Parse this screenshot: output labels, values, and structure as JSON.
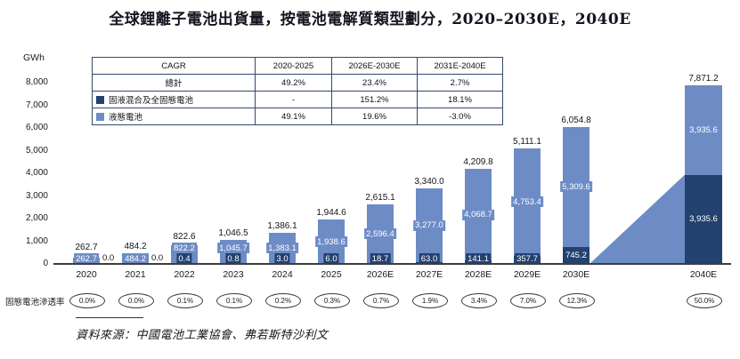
{
  "chart_data": {
    "type": "bar",
    "stacked": true,
    "title": "全球鋰離子電池出貨量，按電池電解質類型劃分，2020–2030E，2040E",
    "ylabel": "GWh",
    "ylim": [
      0,
      8000
    ],
    "ytick_labels": [
      "8,000",
      "7,000",
      "6,000",
      "5,000",
      "4,000",
      "3,000",
      "2,000",
      "1,000",
      "0"
    ],
    "grid": false,
    "legend_position": "table-top-left",
    "categories": [
      "2020",
      "2021",
      "2022",
      "2023",
      "2024",
      "2025",
      "2026E",
      "2027E",
      "2028E",
      "2029E",
      "2030E",
      "2040E"
    ],
    "series": [
      {
        "name": "固液混合及全固態電池",
        "color_key": "solid",
        "values": [
          0.0,
          0.0,
          0.4,
          0.8,
          3.0,
          6.0,
          18.7,
          63.0,
          141.1,
          357.7,
          745.2,
          3935.6
        ],
        "labels": [
          "0.0",
          "0.0",
          "0.4",
          "0.8",
          "3.0",
          "6.0",
          "18.7",
          "63.0",
          "141.1",
          "357.7",
          "745.2",
          "3,935.6"
        ]
      },
      {
        "name": "液態電池",
        "color_key": "liquid",
        "values": [
          262.7,
          484.2,
          822.2,
          1045.7,
          1383.1,
          1938.6,
          2596.4,
          3277.0,
          4068.7,
          4753.4,
          5309.6,
          3935.6
        ],
        "labels": [
          "262.7",
          "484.2",
          "822.2",
          "1,045.7",
          "1,383.1",
          "1,938.6",
          "2,596.4",
          "3,277.0",
          "4,068.7",
          "4,753.4",
          "5,309.6",
          "3,935.6"
        ]
      }
    ],
    "totals": [
      262.7,
      484.2,
      822.6,
      1046.5,
      1386.1,
      1944.6,
      2615.1,
      3340.0,
      4209.8,
      5111.1,
      6054.8,
      7871.2
    ],
    "total_labels": [
      "262.7",
      "484.2",
      "822.6",
      "1,046.5",
      "1,386.1",
      "1,944.6",
      "2,615.1",
      "3,340.0",
      "4,209.8",
      "5,111.1",
      "6,054.8",
      "7,871.2"
    ]
  },
  "cagr_table": {
    "header": [
      "CAGR",
      "2020-2025",
      "2026E-2030E",
      "2031E-2040E"
    ],
    "rows": [
      {
        "label": "總計",
        "swatch": null,
        "values": [
          "49.2%",
          "23.4%",
          "2.7%"
        ]
      },
      {
        "label": "固液混合及全固態電池",
        "swatch": "solid",
        "values": [
          "-",
          "151.2%",
          "18.1%"
        ]
      },
      {
        "label": "液態電池",
        "swatch": "liquid",
        "values": [
          "49.1%",
          "19.6%",
          "-3.0%"
        ]
      }
    ]
  },
  "penetration": {
    "label": "固態電池滲透率",
    "values": [
      "0.0%",
      "0.0%",
      "0.1%",
      "0.1%",
      "0.2%",
      "0.3%",
      "0.7%",
      "1.9%",
      "3.4%",
      "7.0%",
      "12.3%",
      "50.0%"
    ]
  },
  "source": "資料來源：中國電池工業協會、弗若斯特沙利文",
  "colors": {
    "solid": "#24426F",
    "liquid": "#6D8CC6"
  }
}
